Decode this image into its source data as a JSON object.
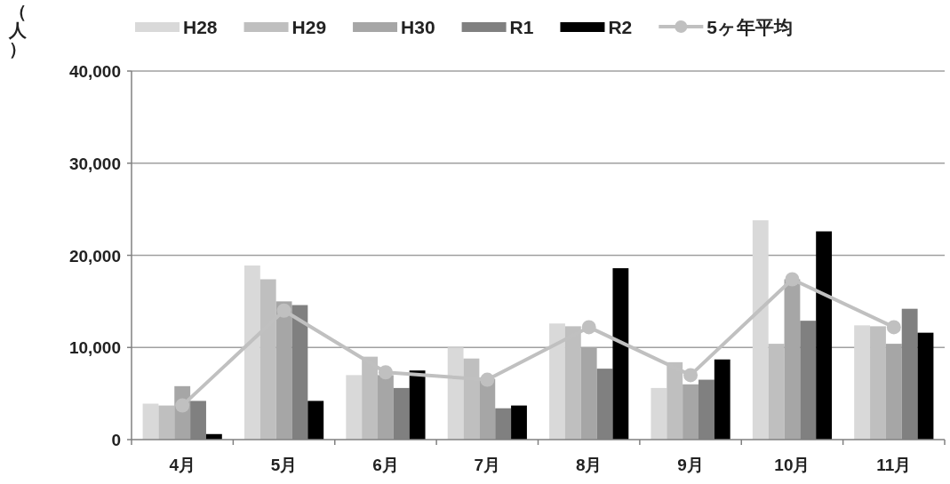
{
  "chart_data": {
    "type": "bar",
    "ylabel": "（人）",
    "categories": [
      "4月",
      "5月",
      "6月",
      "7月",
      "8月",
      "9月",
      "10月",
      "11月"
    ],
    "series": [
      {
        "name": "H28",
        "color": "#d9d9d9",
        "values": [
          3900,
          18900,
          7000,
          10000,
          12600,
          5600,
          23800,
          12400
        ]
      },
      {
        "name": "H29",
        "color": "#bfbfbf",
        "values": [
          3700,
          17400,
          9000,
          8800,
          12300,
          8400,
          10400,
          12300
        ]
      },
      {
        "name": "H30",
        "color": "#a6a6a6",
        "values": [
          5800,
          15000,
          7000,
          6600,
          10000,
          6000,
          17400,
          10400
        ]
      },
      {
        "name": "R1",
        "color": "#808080",
        "values": [
          4200,
          14600,
          5600,
          3400,
          7700,
          6500,
          12900,
          14200
        ]
      },
      {
        "name": "R2",
        "color": "#000000",
        "values": [
          600,
          4200,
          7500,
          3700,
          18600,
          8700,
          22600,
          11600
        ]
      },
      {
        "name": "5ヶ年平均",
        "type": "line",
        "color": "#c0c0c0",
        "marker": "circle",
        "values": [
          3700,
          14000,
          7300,
          6500,
          12200,
          7000,
          17400,
          12200
        ]
      }
    ],
    "ylim": [
      0,
      40000
    ],
    "yticks": [
      {
        "value": 0,
        "label": "0"
      },
      {
        "value": 10000,
        "label": "10,000"
      },
      {
        "value": 20000,
        "label": "20,000"
      },
      {
        "value": 30000,
        "label": "30,000"
      },
      {
        "value": 40000,
        "label": "40,000"
      }
    ],
    "grid": "y",
    "legend": "top"
  }
}
